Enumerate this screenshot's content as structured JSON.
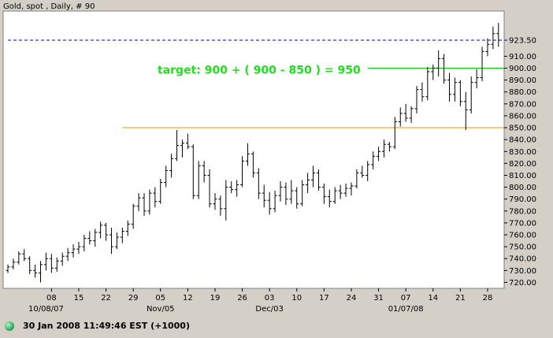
{
  "chart_title": "Gold, spot , Daily, # 90",
  "status_text": "30 Jan 2008 11:49:46  EST (+1000)",
  "colors": {
    "background": "#d4d0c8",
    "plot_background": "#ffffff",
    "bars": "#000000",
    "last_price_line": "#0000cc",
    "target_line": "#00cc00",
    "support_line": "#ff8800",
    "annotation": "#22dd22"
  },
  "chart_data": {
    "type": "ohlc",
    "title": "Gold, spot , Daily, # 90",
    "ylim": [
      715,
      948
    ],
    "y_ticks": [
      720,
      730,
      740,
      750,
      760,
      770,
      780,
      790,
      800,
      810,
      820,
      830,
      840,
      850,
      860,
      870,
      880,
      890,
      900,
      910,
      923.5
    ],
    "y_tick_labels": [
      "720.00",
      "730.00",
      "740.00",
      "750.00",
      "760.00",
      "770.00",
      "780.00",
      "790.00",
      "800.00",
      "810.00",
      "820.00",
      "830.00",
      "840.00",
      "850.00",
      "860.00",
      "870.00",
      "880.00",
      "890.00",
      "900.00",
      "910.00",
      "923.50"
    ],
    "x_ticks": [
      {
        "label": "08",
        "index": 8
      },
      {
        "label": "15",
        "index": 13
      },
      {
        "label": "22",
        "index": 18
      },
      {
        "label": "29",
        "index": 23
      },
      {
        "label": "05",
        "index": 28
      },
      {
        "label": "12",
        "index": 33
      },
      {
        "label": "19",
        "index": 38
      },
      {
        "label": "26",
        "index": 43
      },
      {
        "label": "03",
        "index": 48
      },
      {
        "label": "10",
        "index": 53
      },
      {
        "label": "17",
        "index": 58
      },
      {
        "label": "24",
        "index": 63
      },
      {
        "label": "31",
        "index": 68
      },
      {
        "label": "07",
        "index": 73
      },
      {
        "label": "14",
        "index": 78
      },
      {
        "label": "21",
        "index": 83
      },
      {
        "label": "28",
        "index": 88
      }
    ],
    "x_month_labels": [
      {
        "label": "10/08/07",
        "index": 7
      },
      {
        "label": "Nov/05",
        "index": 28
      },
      {
        "label": "Dec/03",
        "index": 48
      },
      {
        "label": "01/07/08",
        "index": 73
      }
    ],
    "bars": [
      {
        "o": 730,
        "h": 735,
        "l": 728,
        "c": 733
      },
      {
        "o": 733,
        "h": 740,
        "l": 731,
        "c": 737
      },
      {
        "o": 737,
        "h": 746,
        "l": 735,
        "c": 744
      },
      {
        "o": 744,
        "h": 748,
        "l": 738,
        "c": 740
      },
      {
        "o": 740,
        "h": 742,
        "l": 727,
        "c": 730
      },
      {
        "o": 730,
        "h": 735,
        "l": 724,
        "c": 728
      },
      {
        "o": 728,
        "h": 738,
        "l": 720,
        "c": 735
      },
      {
        "o": 735,
        "h": 745,
        "l": 730,
        "c": 740
      },
      {
        "o": 740,
        "h": 744,
        "l": 728,
        "c": 732
      },
      {
        "o": 732,
        "h": 741,
        "l": 729,
        "c": 738
      },
      {
        "o": 738,
        "h": 745,
        "l": 734,
        "c": 742
      },
      {
        "o": 742,
        "h": 749,
        "l": 738,
        "c": 745
      },
      {
        "o": 745,
        "h": 752,
        "l": 741,
        "c": 748
      },
      {
        "o": 748,
        "h": 754,
        "l": 744,
        "c": 750
      },
      {
        "o": 750,
        "h": 760,
        "l": 746,
        "c": 757
      },
      {
        "o": 757,
        "h": 763,
        "l": 752,
        "c": 755
      },
      {
        "o": 755,
        "h": 765,
        "l": 750,
        "c": 762
      },
      {
        "o": 762,
        "h": 771,
        "l": 757,
        "c": 768
      },
      {
        "o": 768,
        "h": 770,
        "l": 755,
        "c": 760
      },
      {
        "o": 760,
        "h": 766,
        "l": 744,
        "c": 750
      },
      {
        "o": 750,
        "h": 762,
        "l": 748,
        "c": 758
      },
      {
        "o": 758,
        "h": 766,
        "l": 753,
        "c": 763
      },
      {
        "o": 763,
        "h": 772,
        "l": 759,
        "c": 769
      },
      {
        "o": 769,
        "h": 786,
        "l": 765,
        "c": 784
      },
      {
        "o": 784,
        "h": 795,
        "l": 780,
        "c": 791
      },
      {
        "o": 791,
        "h": 795,
        "l": 776,
        "c": 780
      },
      {
        "o": 780,
        "h": 798,
        "l": 777,
        "c": 795
      },
      {
        "o": 795,
        "h": 800,
        "l": 783,
        "c": 788
      },
      {
        "o": 788,
        "h": 807,
        "l": 786,
        "c": 804
      },
      {
        "o": 804,
        "h": 818,
        "l": 800,
        "c": 814
      },
      {
        "o": 814,
        "h": 828,
        "l": 808,
        "c": 824
      },
      {
        "o": 824,
        "h": 848,
        "l": 822,
        "c": 835
      },
      {
        "o": 835,
        "h": 840,
        "l": 825,
        "c": 837
      },
      {
        "o": 837,
        "h": 845,
        "l": 832,
        "c": 834
      },
      {
        "o": 834,
        "h": 836,
        "l": 790,
        "c": 793
      },
      {
        "o": 793,
        "h": 822,
        "l": 790,
        "c": 818
      },
      {
        "o": 818,
        "h": 822,
        "l": 804,
        "c": 810
      },
      {
        "o": 810,
        "h": 815,
        "l": 783,
        "c": 786
      },
      {
        "o": 786,
        "h": 795,
        "l": 781,
        "c": 790
      },
      {
        "o": 790,
        "h": 793,
        "l": 776,
        "c": 782
      },
      {
        "o": 782,
        "h": 806,
        "l": 772,
        "c": 800
      },
      {
        "o": 800,
        "h": 805,
        "l": 795,
        "c": 798
      },
      {
        "o": 798,
        "h": 806,
        "l": 792,
        "c": 802
      },
      {
        "o": 802,
        "h": 826,
        "l": 800,
        "c": 822
      },
      {
        "o": 822,
        "h": 837,
        "l": 818,
        "c": 828
      },
      {
        "o": 828,
        "h": 830,
        "l": 808,
        "c": 812
      },
      {
        "o": 812,
        "h": 816,
        "l": 790,
        "c": 795
      },
      {
        "o": 795,
        "h": 802,
        "l": 783,
        "c": 789
      },
      {
        "o": 789,
        "h": 796,
        "l": 777,
        "c": 782
      },
      {
        "o": 782,
        "h": 797,
        "l": 779,
        "c": 793
      },
      {
        "o": 793,
        "h": 805,
        "l": 788,
        "c": 800
      },
      {
        "o": 800,
        "h": 804,
        "l": 785,
        "c": 790
      },
      {
        "o": 790,
        "h": 806,
        "l": 786,
        "c": 797
      },
      {
        "o": 797,
        "h": 800,
        "l": 782,
        "c": 786
      },
      {
        "o": 786,
        "h": 806,
        "l": 784,
        "c": 802
      },
      {
        "o": 802,
        "h": 812,
        "l": 795,
        "c": 806
      },
      {
        "o": 806,
        "h": 818,
        "l": 800,
        "c": 812
      },
      {
        "o": 812,
        "h": 815,
        "l": 797,
        "c": 800
      },
      {
        "o": 800,
        "h": 803,
        "l": 786,
        "c": 792
      },
      {
        "o": 792,
        "h": 798,
        "l": 783,
        "c": 788
      },
      {
        "o": 788,
        "h": 800,
        "l": 786,
        "c": 797
      },
      {
        "o": 797,
        "h": 802,
        "l": 790,
        "c": 795
      },
      {
        "o": 795,
        "h": 803,
        "l": 792,
        "c": 799
      },
      {
        "o": 799,
        "h": 804,
        "l": 793,
        "c": 801
      },
      {
        "o": 801,
        "h": 815,
        "l": 799,
        "c": 812
      },
      {
        "o": 812,
        "h": 818,
        "l": 808,
        "c": 810
      },
      {
        "o": 810,
        "h": 822,
        "l": 805,
        "c": 819
      },
      {
        "o": 819,
        "h": 830,
        "l": 815,
        "c": 826
      },
      {
        "o": 826,
        "h": 834,
        "l": 822,
        "c": 830
      },
      {
        "o": 830,
        "h": 840,
        "l": 825,
        "c": 836
      },
      {
        "o": 836,
        "h": 838,
        "l": 830,
        "c": 834
      },
      {
        "o": 834,
        "h": 859,
        "l": 832,
        "c": 855
      },
      {
        "o": 855,
        "h": 867,
        "l": 851,
        "c": 862
      },
      {
        "o": 862,
        "h": 870,
        "l": 855,
        "c": 858
      },
      {
        "o": 858,
        "h": 868,
        "l": 854,
        "c": 866
      },
      {
        "o": 866,
        "h": 885,
        "l": 862,
        "c": 882
      },
      {
        "o": 882,
        "h": 888,
        "l": 872,
        "c": 876
      },
      {
        "o": 876,
        "h": 901,
        "l": 873,
        "c": 897
      },
      {
        "o": 897,
        "h": 903,
        "l": 890,
        "c": 900
      },
      {
        "o": 900,
        "h": 915,
        "l": 893,
        "c": 908
      },
      {
        "o": 908,
        "h": 912,
        "l": 887,
        "c": 890
      },
      {
        "o": 890,
        "h": 896,
        "l": 872,
        "c": 878
      },
      {
        "o": 878,
        "h": 892,
        "l": 872,
        "c": 888
      },
      {
        "o": 888,
        "h": 890,
        "l": 868,
        "c": 872
      },
      {
        "o": 872,
        "h": 880,
        "l": 848,
        "c": 865
      },
      {
        "o": 865,
        "h": 893,
        "l": 862,
        "c": 888
      },
      {
        "o": 888,
        "h": 899,
        "l": 883,
        "c": 892
      },
      {
        "o": 892,
        "h": 918,
        "l": 889,
        "c": 914
      },
      {
        "o": 914,
        "h": 925,
        "l": 910,
        "c": 920
      },
      {
        "o": 920,
        "h": 935,
        "l": 916,
        "c": 929
      },
      {
        "o": 929,
        "h": 938,
        "l": 918,
        "c": 923.5
      }
    ],
    "horizontal_lines": [
      {
        "name": "last-price",
        "value": 923.5,
        "style": "dashed",
        "start_index": 0
      },
      {
        "name": "target",
        "value": 900,
        "style": "solid",
        "start_index": 66
      },
      {
        "name": "support",
        "value": 850,
        "style": "solid",
        "start_index": 21
      }
    ],
    "annotations": [
      {
        "text": "target: 900 + ( 900 - 850 ) = 950",
        "y": 900,
        "index": 30
      }
    ]
  }
}
